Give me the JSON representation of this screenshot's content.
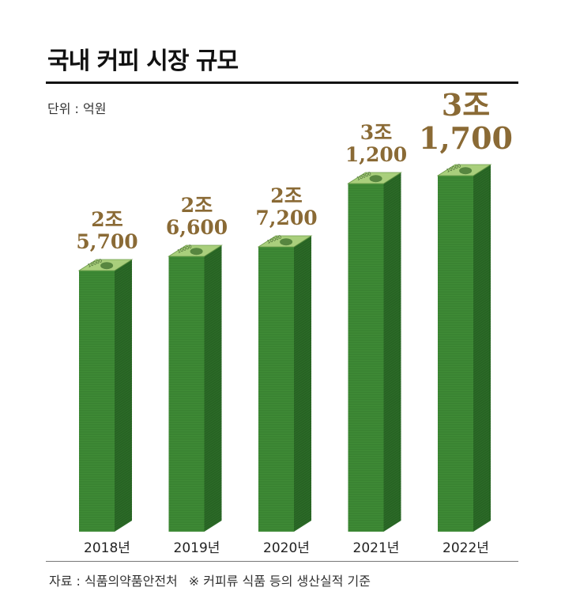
{
  "title": "국내 커피 시장 규모",
  "unit": "단위 : 억원",
  "source": "자료 : 식품의약품안전처",
  "note": "※ 커피류 식품 등의 생산실적 기준",
  "colors": {
    "label": "#8a6a35",
    "bar_front": "#3f8b36",
    "bar_side": "#2b6a27",
    "bill_top": "#a9cf7c"
  },
  "chart_data": {
    "type": "bar",
    "categories": [
      "2018년",
      "2019년",
      "2020년",
      "2021년",
      "2022년"
    ],
    "values": [
      25700,
      26600,
      27200,
      31200,
      31700
    ],
    "data_labels": [
      [
        "2조",
        "5,700"
      ],
      [
        "2조",
        "6,600"
      ],
      [
        "2조",
        "7,200"
      ],
      [
        "3조",
        "1,200"
      ],
      [
        "3조",
        "1,700"
      ]
    ],
    "bill_text": "10000",
    "ylim": [
      0,
      33000
    ]
  }
}
